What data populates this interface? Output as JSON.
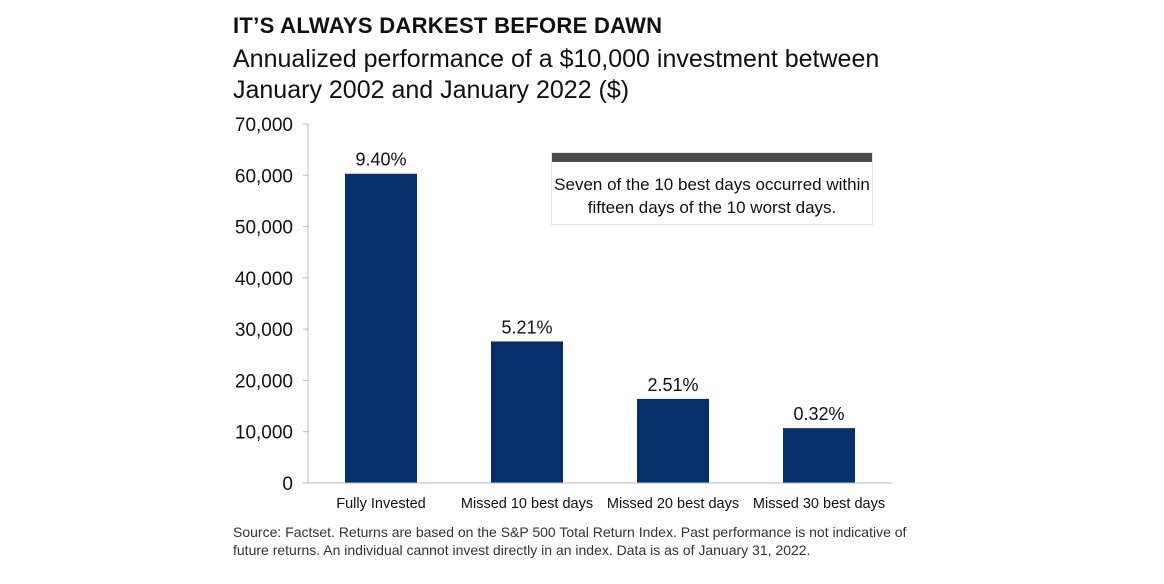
{
  "header": {
    "kicker": "IT’S ALWAYS DARKEST BEFORE DAWN",
    "subtitle": "Annualized performance of a $10,000 investment between January 2002 and January 2022 ($)"
  },
  "callout": {
    "text": "Seven of the 10 best days occurred within fifteen days of the 10 worst days."
  },
  "footer": {
    "source": "Source: Factset. Returns are based on the S&P 500 Total Return Index. Past performance is not indicative of future returns. An individual cannot invest directly in an index. Data is as of January 31, 2022."
  },
  "colors": {
    "bar": "#06306b",
    "axis": "#bbbbbb",
    "callout_bar": "#4a4a4a"
  },
  "chart_data": {
    "type": "bar",
    "title": "Annualized performance of a $10,000 investment between January 2002 and January 2022 ($)",
    "xlabel": "",
    "ylabel": "",
    "categories": [
      "Fully Invested",
      "Missed 10 best days",
      "Missed 20 best days",
      "Missed 30 best days"
    ],
    "values": [
      60300,
      27600,
      16400,
      10700
    ],
    "data_labels": [
      "9.40%",
      "5.21%",
      "2.51%",
      "0.32%"
    ],
    "ylim": [
      0,
      70000
    ],
    "yticks": [
      0,
      10000,
      20000,
      30000,
      40000,
      50000,
      60000,
      70000
    ],
    "ytick_labels": [
      "0",
      "10,000",
      "20,000",
      "30,000",
      "40,000",
      "50,000",
      "60,000",
      "70,000"
    ],
    "grid": false,
    "legend": "none"
  }
}
